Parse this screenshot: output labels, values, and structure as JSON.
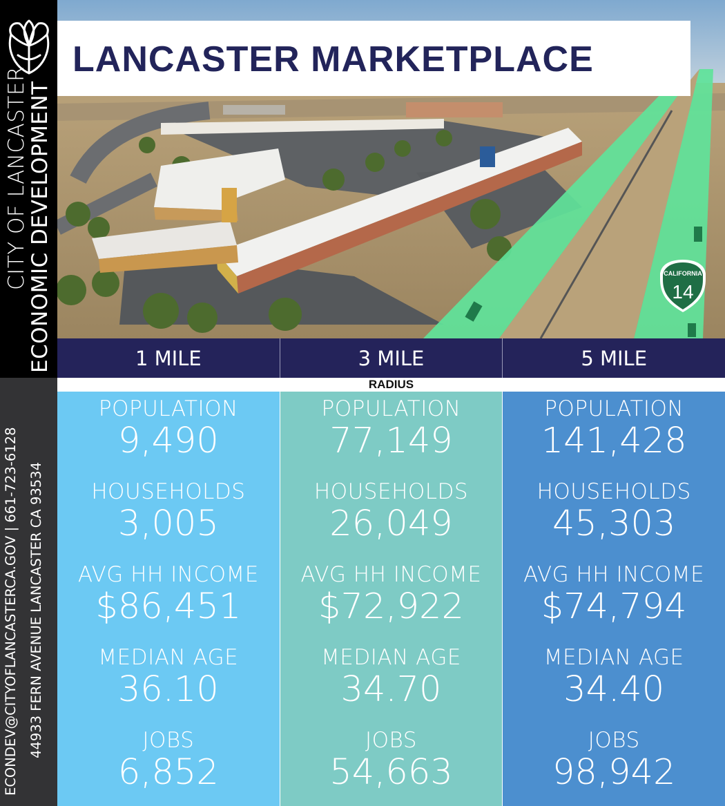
{
  "sidebar": {
    "city_line1": "CITY OF LANCASTER",
    "city_line2": "ECONOMIC DEVELOPMENT",
    "contact_line1": "ECONDEV@CITYOFLANCASTERCA.GOV | 661-723-6128",
    "contact_line2": "44933 FERN AVENUE LANCASTER CA 93534",
    "logo_icon": "poppy-flower-logo"
  },
  "header": {
    "title": "LANCASTER MARKETPLACE"
  },
  "highway_shield": {
    "state": "CALIFORNIA",
    "number": "14"
  },
  "radius": {
    "label": "RADIUS",
    "columns": [
      "1 MILE",
      "3 MILE",
      "5 MILE"
    ]
  },
  "colors": {
    "navy": "#24235a",
    "col_1": "#6cc9f3",
    "col_2": "#7ecbc5",
    "col_3": "#4c8fcf",
    "highway_overlay": "#5fe39a"
  },
  "stat_labels": [
    "POPULATION",
    "HOUSEHOLDS",
    "AVG HH INCOME",
    "MEDIAN AGE",
    "JOBS"
  ],
  "stats": [
    {
      "radius": "1 MILE",
      "population": "9,490",
      "households": "3,005",
      "avg_hh_income": "$86,451",
      "median_age": "36.10",
      "jobs": "6,852"
    },
    {
      "radius": "3 MILE",
      "population": "77,149",
      "households": "26,049",
      "avg_hh_income": "$72,922",
      "median_age": "34.70",
      "jobs": "54,663"
    },
    {
      "radius": "5 MILE",
      "population": "141,428",
      "households": "45,303",
      "avg_hh_income": "$74,794",
      "median_age": "34.40",
      "jobs": "98,942"
    }
  ]
}
